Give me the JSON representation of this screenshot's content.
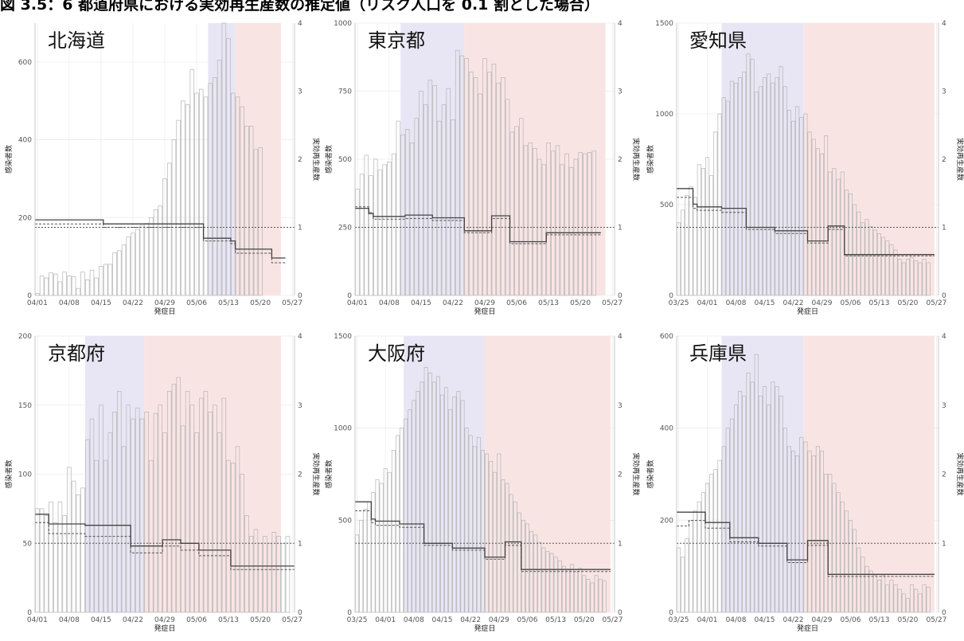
{
  "figure_title": "図 3.5：6 都道府県における実効再生産数の推定値（リスク人口を 0.1 割とした場合）",
  "colors": {
    "period1_fill": "#e8e6f4",
    "period2_fill": "#f9e4e4",
    "bar_stroke": "#b5b5b5",
    "estimate_line": "#444444"
  },
  "chart_data": [
    {
      "type": "bar",
      "title": "北海道",
      "xlabel": "発症日",
      "ylabel": "感染者数",
      "y2label": "実効再生産数",
      "ylim": [
        0,
        700
      ],
      "y2lim": [
        0,
        4
      ],
      "y_ticks": [
        "0",
        "200",
        "400",
        "600"
      ],
      "y2_ticks": [
        "0",
        "1",
        "2",
        "3",
        "4"
      ],
      "x_ticks": [
        "04/01",
        "04/08",
        "04/15",
        "04/22",
        "04/29",
        "05/06",
        "05/13",
        "05/20",
        "05/27"
      ],
      "x_start": "04/01",
      "x_end": "05/27",
      "shade_period1": [
        "05/09",
        "05/15"
      ],
      "shade_period2": [
        "05/15",
        "05/24"
      ],
      "values": [
        5,
        50,
        45,
        58,
        55,
        35,
        60,
        50,
        48,
        18,
        60,
        40,
        65,
        45,
        75,
        80,
        80,
        110,
        115,
        130,
        150,
        160,
        170,
        180,
        185,
        200,
        220,
        230,
        300,
        340,
        400,
        450,
        500,
        490,
        580,
        520,
        530,
        510,
        545,
        560,
        605,
        700,
        660,
        520,
        510,
        485,
        435,
        435,
        375,
        380
      ],
      "rt_estimate": [
        1.11,
        1.11,
        1.11,
        1.11,
        1.11,
        1.11,
        1.11,
        1.11,
        1.11,
        1.11,
        1.11,
        1.11,
        1.11,
        1.11,
        1.11,
        1.05,
        1.05,
        1.05,
        1.05,
        1.05,
        1.05,
        1.05,
        1.05,
        1.05,
        1.05,
        1.05,
        1.05,
        1.05,
        1.05,
        1.05,
        1.05,
        1.05,
        1.05,
        1.05,
        1.05,
        1.05,
        1.05,
        0.84,
        0.84,
        0.84,
        0.84,
        0.84,
        0.84,
        0.8,
        0.68,
        0.68,
        0.68,
        0.68,
        0.68,
        0.68,
        0.68,
        0.68,
        0.55,
        0.55,
        0.55
      ],
      "rt_dashed": [
        1.05,
        1.05,
        1.05,
        1.05,
        1.05,
        1.05,
        1.05,
        1.05,
        1.05,
        1.05,
        1.05,
        1.05,
        1.05,
        1.05,
        1.05,
        1.0,
        1.0,
        1.0,
        1.0,
        1.0,
        1.0,
        1.0,
        1.0,
        1.0,
        1.0,
        1.0,
        1.0,
        1.0,
        1.0,
        1.0,
        1.0,
        1.0,
        1.0,
        1.0,
        1.0,
        1.0,
        1.0,
        0.8,
        0.8,
        0.8,
        0.8,
        0.8,
        0.8,
        0.76,
        0.62,
        0.62,
        0.62,
        0.62,
        0.62,
        0.62,
        0.62,
        0.62,
        0.48,
        0.48,
        0.48
      ],
      "reference_line": 1
    },
    {
      "type": "bar",
      "title": "東京都",
      "xlabel": "発症日",
      "ylabel": "感染者数",
      "y2label": "実効再生産数",
      "ylim": [
        0,
        1000
      ],
      "y2lim": [
        0,
        4
      ],
      "y_ticks": [
        "0",
        "250",
        "500",
        "750",
        "1000"
      ],
      "y2_ticks": [
        "0",
        "1",
        "2",
        "3",
        "4"
      ],
      "x_ticks": [
        "04/01",
        "04/08",
        "04/15",
        "04/22",
        "04/29",
        "05/06",
        "05/13",
        "05/20",
        "05/27"
      ],
      "x_start": "04/01",
      "x_end": "05/27",
      "shade_period1": [
        "04/11",
        "04/25"
      ],
      "shade_period2": [
        "04/25",
        "05/25"
      ],
      "values": [
        390,
        445,
        515,
        440,
        500,
        460,
        480,
        490,
        520,
        640,
        590,
        610,
        560,
        650,
        750,
        700,
        790,
        770,
        640,
        700,
        760,
        645,
        900,
        880,
        870,
        820,
        800,
        740,
        870,
        820,
        850,
        780,
        800,
        720,
        600,
        620,
        650,
        550,
        560,
        540,
        500,
        480,
        560,
        530,
        550,
        480,
        520,
        470,
        500,
        525,
        520,
        525,
        530
      ],
      "rt_estimate": [
        1.28,
        1.28,
        1.28,
        1.2,
        1.16,
        1.16,
        1.16,
        1.16,
        1.16,
        1.16,
        1.16,
        1.18,
        1.18,
        1.18,
        1.18,
        1.18,
        1.18,
        1.14,
        1.14,
        1.14,
        1.14,
        1.14,
        1.14,
        1.14,
        0.95,
        0.95,
        0.95,
        0.95,
        0.95,
        0.95,
        1.17,
        1.17,
        1.17,
        1.17,
        0.79,
        0.79,
        0.79,
        0.79,
        0.79,
        0.79,
        0.79,
        0.79,
        0.92,
        0.92,
        0.92,
        0.92,
        0.92,
        0.92,
        0.92,
        0.92,
        0.92,
        0.92,
        0.92,
        0.92
      ],
      "rt_dashed": [
        1.3,
        1.3,
        1.3,
        1.22,
        1.12,
        1.12,
        1.12,
        1.12,
        1.12,
        1.12,
        1.12,
        1.13,
        1.13,
        1.13,
        1.13,
        1.13,
        1.13,
        1.1,
        1.1,
        1.1,
        1.1,
        1.1,
        1.1,
        1.1,
        0.92,
        0.92,
        0.92,
        0.92,
        0.92,
        0.92,
        1.13,
        1.13,
        1.13,
        1.13,
        0.76,
        0.76,
        0.76,
        0.76,
        0.76,
        0.76,
        0.76,
        0.76,
        0.89,
        0.89,
        0.89,
        0.89,
        0.89,
        0.89,
        0.89,
        0.89,
        0.89,
        0.89,
        0.89,
        0.89
      ],
      "reference_line": 1
    },
    {
      "type": "bar",
      "title": "愛知県",
      "xlabel": "発症日",
      "ylabel": "感染者数",
      "y2label": "実効再生産数",
      "ylim": [
        0,
        1500
      ],
      "y2lim": [
        0,
        4
      ],
      "y_ticks": [
        "0",
        "500",
        "1000",
        "1500"
      ],
      "y2_ticks": [
        "0",
        "1",
        "2",
        "3",
        "4"
      ],
      "x_ticks": [
        "03/25",
        "04/01",
        "04/08",
        "04/15",
        "04/22",
        "04/29",
        "05/06",
        "05/13",
        "05/20",
        "05/27"
      ],
      "x_start": "03/25",
      "x_end": "05/27",
      "shade_period1": [
        "04/05",
        "04/25"
      ],
      "shade_period2": [
        "04/25",
        "05/26"
      ],
      "values": [
        400,
        470,
        550,
        600,
        540,
        720,
        700,
        760,
        660,
        900,
        1000,
        1090,
        1070,
        1180,
        1170,
        1200,
        1230,
        1330,
        1300,
        1120,
        1150,
        1200,
        1220,
        1170,
        1200,
        1260,
        1150,
        1020,
        960,
        1040,
        980,
        1000,
        900,
        860,
        810,
        780,
        880,
        680,
        700,
        640,
        680,
        580,
        560,
        500,
        460,
        400,
        420,
        380,
        360,
        340,
        320,
        300,
        280,
        250,
        200,
        180,
        200,
        210,
        190,
        180,
        200,
        180
      ],
      "rt_estimate": [
        1.57,
        1.57,
        1.57,
        1.57,
        1.34,
        1.3,
        1.3,
        1.3,
        1.3,
        1.3,
        1.3,
        1.28,
        1.28,
        1.28,
        1.28,
        1.28,
        1.28,
        1.0,
        1.0,
        1.0,
        1.0,
        1.0,
        1.0,
        1.0,
        0.95,
        0.95,
        0.95,
        0.95,
        0.95,
        0.95,
        0.95,
        0.95,
        0.8,
        0.8,
        0.8,
        0.8,
        0.8,
        1.02,
        1.02,
        1.02,
        1.02,
        0.6,
        0.6,
        0.6,
        0.6,
        0.6,
        0.6,
        0.6,
        0.6,
        0.6,
        0.6,
        0.6,
        0.6,
        0.6,
        0.6,
        0.6,
        0.6,
        0.6,
        0.6,
        0.6,
        0.6,
        0.6,
        0.6
      ],
      "rt_dashed": [
        1.44,
        1.44,
        1.44,
        1.44,
        1.28,
        1.25,
        1.25,
        1.25,
        1.25,
        1.25,
        1.25,
        1.22,
        1.22,
        1.22,
        1.22,
        1.22,
        1.22,
        0.97,
        0.97,
        0.97,
        0.97,
        0.97,
        0.97,
        0.97,
        0.91,
        0.91,
        0.91,
        0.91,
        0.91,
        0.91,
        0.91,
        0.91,
        0.77,
        0.77,
        0.77,
        0.77,
        0.77,
        0.97,
        0.97,
        0.97,
        0.97,
        0.58,
        0.58,
        0.58,
        0.58,
        0.58,
        0.58,
        0.58,
        0.58,
        0.58,
        0.58,
        0.58,
        0.58,
        0.58,
        0.58,
        0.58,
        0.58,
        0.58,
        0.58,
        0.58,
        0.58,
        0.58,
        0.58
      ],
      "reference_line": 1
    },
    {
      "type": "bar",
      "title": "京都府",
      "xlabel": "発症日",
      "ylabel": "感染者数",
      "y2label": "実効再生産数",
      "ylim": [
        0,
        200
      ],
      "y2lim": [
        0,
        4
      ],
      "y_ticks": [
        "0",
        "50",
        "100",
        "150",
        "200"
      ],
      "y2_ticks": [
        "0",
        "1",
        "2",
        "3",
        "4"
      ],
      "x_ticks": [
        "04/01",
        "04/08",
        "04/15",
        "04/22",
        "04/29",
        "05/06",
        "05/13",
        "05/20",
        "05/27"
      ],
      "x_start": "04/01",
      "x_end": "05/27",
      "shade_period1": [
        "04/12",
        "04/25"
      ],
      "shade_period2": [
        "04/25",
        "05/24"
      ],
      "values": [
        75,
        75,
        70,
        80,
        65,
        80,
        70,
        105,
        95,
        85,
        90,
        125,
        140,
        110,
        150,
        110,
        130,
        145,
        160,
        120,
        150,
        140,
        148,
        140,
        145,
        110,
        144,
        150,
        130,
        160,
        165,
        170,
        135,
        160,
        150,
        130,
        155,
        160,
        145,
        150,
        130,
        155,
        110,
        108,
        120,
        100,
        70,
        55,
        60,
        50,
        55,
        50,
        58,
        55,
        50,
        55
      ],
      "rt_estimate": [
        1.42,
        1.42,
        1.42,
        1.28,
        1.28,
        1.28,
        1.28,
        1.28,
        1.28,
        1.28,
        1.28,
        1.26,
        1.26,
        1.26,
        1.26,
        1.26,
        1.26,
        1.26,
        1.26,
        1.26,
        1.26,
        0.96,
        0.96,
        0.96,
        0.96,
        0.96,
        0.96,
        0.96,
        1.05,
        1.05,
        1.05,
        1.05,
        1.0,
        1.0,
        1.0,
        1.0,
        0.9,
        0.9,
        0.9,
        0.9,
        0.9,
        0.9,
        0.9,
        0.67,
        0.67,
        0.67,
        0.67,
        0.67,
        0.67,
        0.67,
        0.67,
        0.67,
        0.67,
        0.67,
        0.67,
        0.67,
        0.67
      ],
      "rt_dashed": [
        1.3,
        1.3,
        1.3,
        1.14,
        1.14,
        1.14,
        1.14,
        1.14,
        1.14,
        1.14,
        1.14,
        1.1,
        1.1,
        1.1,
        1.1,
        1.1,
        1.1,
        1.1,
        1.1,
        1.1,
        1.1,
        0.86,
        0.86,
        0.86,
        0.86,
        0.86,
        0.86,
        0.86,
        0.96,
        0.96,
        0.96,
        0.96,
        0.9,
        0.9,
        0.9,
        0.9,
        0.82,
        0.82,
        0.82,
        0.82,
        0.82,
        0.82,
        0.82,
        0.62,
        0.62,
        0.62,
        0.62,
        0.62,
        0.62,
        0.62,
        0.62,
        0.62,
        0.62,
        0.62,
        0.62,
        0.62,
        0.62
      ],
      "reference_line": 1
    },
    {
      "type": "bar",
      "title": "大阪府",
      "xlabel": "発症日",
      "ylabel": "感染者数",
      "y2label": "実効再生産数",
      "ylim": [
        0,
        1500
      ],
      "y2lim": [
        0,
        4
      ],
      "y_ticks": [
        "0",
        "500",
        "1000",
        "1500"
      ],
      "y2_ticks": [
        "0",
        "1",
        "2",
        "3",
        "4"
      ],
      "x_ticks": [
        "03/25",
        "04/01",
        "04/08",
        "04/15",
        "04/22",
        "04/29",
        "05/06",
        "05/13",
        "05/20",
        "05/27"
      ],
      "x_start": "03/25",
      "x_end": "05/27",
      "shade_period1": [
        "04/06",
        "04/26"
      ],
      "shade_period2": [
        "04/26",
        "05/26"
      ],
      "values": [
        420,
        500,
        560,
        600,
        650,
        720,
        700,
        780,
        760,
        880,
        960,
        1000,
        1050,
        1100,
        1150,
        1200,
        1250,
        1330,
        1300,
        1250,
        1280,
        1180,
        1220,
        1100,
        1170,
        1200,
        1150,
        1000,
        960,
        900,
        950,
        880,
        860,
        820,
        760,
        860,
        720,
        700,
        640,
        600,
        540,
        500,
        480,
        440,
        420,
        380,
        350,
        330,
        320,
        300,
        280,
        250,
        230,
        260,
        220,
        240,
        200,
        180,
        160,
        200,
        180,
        170
      ],
      "rt_estimate": [
        1.6,
        1.6,
        1.6,
        1.6,
        1.35,
        1.32,
        1.32,
        1.32,
        1.32,
        1.32,
        1.32,
        1.28,
        1.28,
        1.28,
        1.28,
        1.28,
        1.28,
        1.0,
        1.0,
        1.0,
        1.0,
        1.0,
        1.0,
        1.0,
        0.93,
        0.93,
        0.93,
        0.93,
        0.93,
        0.93,
        0.93,
        0.93,
        0.8,
        0.8,
        0.8,
        0.8,
        0.8,
        1.02,
        1.02,
        1.02,
        1.02,
        0.62,
        0.62,
        0.62,
        0.62,
        0.62,
        0.62,
        0.62,
        0.62,
        0.62,
        0.62,
        0.62,
        0.62,
        0.62,
        0.62,
        0.62,
        0.62,
        0.62,
        0.62,
        0.62,
        0.62,
        0.62,
        0.62
      ],
      "rt_dashed": [
        1.47,
        1.47,
        1.47,
        1.47,
        1.3,
        1.26,
        1.26,
        1.26,
        1.26,
        1.26,
        1.26,
        1.23,
        1.23,
        1.23,
        1.23,
        1.23,
        1.23,
        0.97,
        0.97,
        0.97,
        0.97,
        0.97,
        0.97,
        0.97,
        0.9,
        0.9,
        0.9,
        0.9,
        0.9,
        0.9,
        0.9,
        0.9,
        0.77,
        0.77,
        0.77,
        0.77,
        0.77,
        0.97,
        0.97,
        0.97,
        0.97,
        0.59,
        0.59,
        0.59,
        0.59,
        0.59,
        0.59,
        0.59,
        0.59,
        0.59,
        0.59,
        0.59,
        0.59,
        0.59,
        0.59,
        0.59,
        0.59,
        0.59,
        0.59,
        0.59,
        0.59,
        0.59,
        0.59
      ],
      "reference_line": 1
    },
    {
      "type": "bar",
      "title": "兵庫県",
      "xlabel": "発症日",
      "ylabel": "感染者数",
      "y2label": "実効再生産数",
      "ylim": [
        0,
        600
      ],
      "y2lim": [
        0,
        4
      ],
      "y_ticks": [
        "0",
        "200",
        "400",
        "600"
      ],
      "y2_ticks": [
        "0",
        "1",
        "2",
        "3",
        "4"
      ],
      "x_ticks": [
        "03/25",
        "04/01",
        "04/08",
        "04/15",
        "04/22",
        "04/29",
        "05/06",
        "05/13",
        "05/20",
        "05/27"
      ],
      "x_start": "03/25",
      "x_end": "05/27",
      "shade_period1": [
        "04/05",
        "04/25"
      ],
      "shade_period2": [
        "04/25",
        "05/26"
      ],
      "values": [
        140,
        120,
        160,
        200,
        220,
        240,
        260,
        280,
        300,
        310,
        330,
        360,
        400,
        420,
        450,
        480,
        470,
        520,
        500,
        560,
        470,
        490,
        450,
        500,
        490,
        470,
        400,
        360,
        350,
        340,
        380,
        370,
        350,
        340,
        360,
        350,
        300,
        300,
        280,
        260,
        240,
        220,
        200,
        180,
        140,
        120,
        100,
        90,
        80,
        70,
        80,
        60,
        70,
        60,
        50,
        40,
        30,
        60,
        50,
        40,
        60,
        55
      ],
      "rt_estimate": [
        1.45,
        1.45,
        1.45,
        1.45,
        1.45,
        1.45,
        1.45,
        1.3,
        1.3,
        1.3,
        1.3,
        1.3,
        1.3,
        1.08,
        1.08,
        1.08,
        1.08,
        1.08,
        1.08,
        1.08,
        1.0,
        1.0,
        1.0,
        1.0,
        1.0,
        1.0,
        1.0,
        0.76,
        0.76,
        0.76,
        0.76,
        0.76,
        1.04,
        1.04,
        1.04,
        1.04,
        1.04,
        0.55,
        0.55,
        0.55,
        0.55,
        0.55,
        0.55,
        0.55,
        0.55,
        0.55,
        0.55,
        0.55,
        0.55,
        0.55,
        0.55,
        0.55,
        0.55,
        0.55,
        0.55,
        0.55,
        0.55,
        0.55,
        0.55,
        0.55,
        0.55,
        0.55,
        0.55
      ],
      "rt_dashed": [
        1.25,
        1.25,
        1.25,
        1.33,
        1.33,
        1.33,
        1.33,
        1.22,
        1.22,
        1.22,
        1.22,
        1.22,
        1.22,
        1.02,
        1.02,
        1.02,
        1.02,
        1.02,
        1.02,
        1.02,
        0.96,
        0.96,
        0.96,
        0.96,
        0.96,
        0.96,
        0.96,
        0.72,
        0.72,
        0.72,
        0.72,
        0.72,
        0.97,
        0.97,
        0.97,
        0.97,
        0.97,
        0.52,
        0.52,
        0.52,
        0.52,
        0.52,
        0.52,
        0.52,
        0.52,
        0.52,
        0.52,
        0.52,
        0.52,
        0.52,
        0.52,
        0.52,
        0.52,
        0.52,
        0.52,
        0.52,
        0.52,
        0.52,
        0.52,
        0.52,
        0.52,
        0.52,
        0.52
      ],
      "reference_line": 1
    }
  ]
}
